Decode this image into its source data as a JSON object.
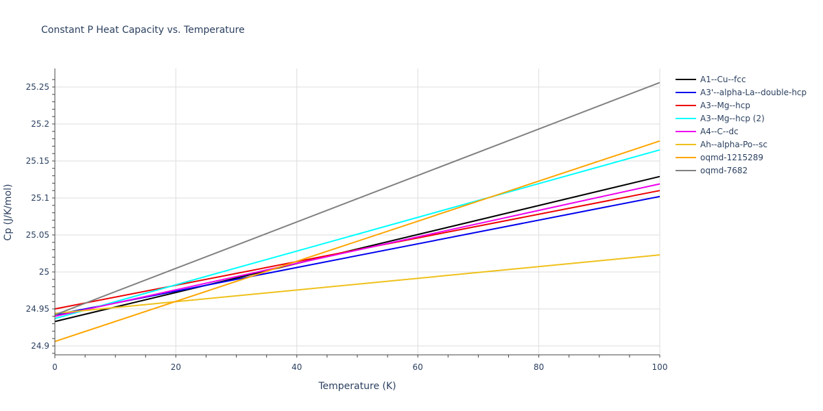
{
  "chart_data": {
    "type": "line",
    "title": "Constant P Heat Capacity vs. Temperature",
    "xlabel": "Temperature (K)",
    "ylabel": "Cp (J/K/mol)",
    "xlim": [
      0,
      100
    ],
    "ylim": [
      24.888,
      25.276
    ],
    "xticks": [
      0,
      20,
      40,
      60,
      80,
      100
    ],
    "yticks": [
      24.9,
      24.95,
      25,
      25.05,
      25.1,
      25.15,
      25.2,
      25.25
    ],
    "ytick_labels": [
      "24.9",
      "24.95",
      "25",
      "25.05",
      "25.1",
      "25.15",
      "25.2",
      "25.25"
    ],
    "grid": true,
    "legend_position": "right",
    "x": [
      0,
      100
    ],
    "series": [
      {
        "name": "A1--Cu--fcc",
        "color": "#000000",
        "values": [
          24.933,
          25.129
        ]
      },
      {
        "name": "A3'--alpha-La--double-hcp",
        "color": "#0000ee",
        "values": [
          24.942,
          25.102
        ]
      },
      {
        "name": "A3--Mg--hcp",
        "color": "#ee0000",
        "values": [
          24.95,
          25.11
        ]
      },
      {
        "name": "A3--Mg--hcp (2)",
        "color": "#00ffff",
        "values": [
          24.937,
          25.165
        ]
      },
      {
        "name": "A4--C--dc",
        "color": "#ee00ee",
        "values": [
          24.94,
          25.119
        ]
      },
      {
        "name": "Ah--alpha-Po--sc",
        "color": "#eec11b",
        "values": [
          24.944,
          25.023
        ]
      },
      {
        "name": "oqmd-1215289",
        "color": "#ffa500",
        "values": [
          24.906,
          25.177
        ]
      },
      {
        "name": "oqmd-7682",
        "color": "#808080",
        "values": [
          24.942,
          25.256
        ]
      }
    ]
  }
}
